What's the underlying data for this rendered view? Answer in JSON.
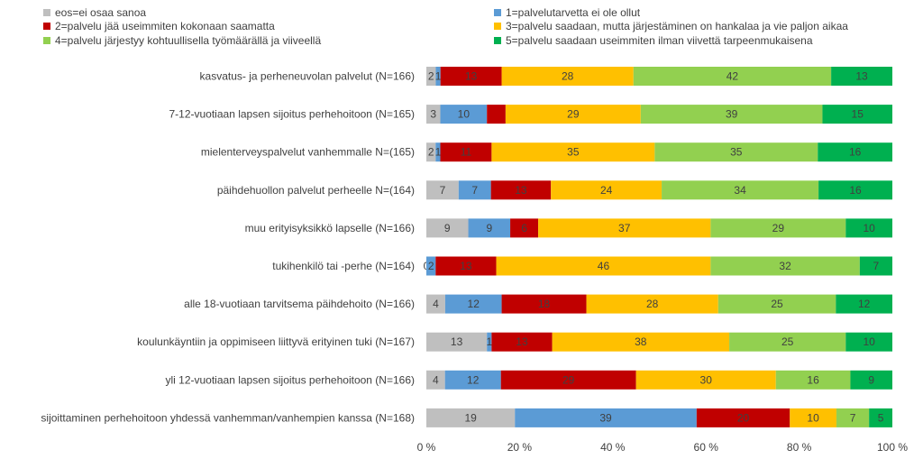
{
  "chart_data": {
    "type": "bar",
    "orientation": "horizontal",
    "stacked": "percent",
    "xlim": [
      0,
      100
    ],
    "grid": false,
    "legend_position": "top",
    "x_ticks": [
      "0 %",
      "20 %",
      "40 %",
      "60 %",
      "80 %",
      "100 %"
    ],
    "categories": [
      "kasvatus- ja perheneuvolan palvelut (N=166)",
      "7-12-vuotiaan lapsen sijoitus perhehoitoon (N=165)",
      "mielenterveyspalvelut vanhemmalle N=(165)",
      "päihdehuollon palvelut perheelle N=(164)",
      "muu erityisyksikkö lapselle (N=166)",
      "tukihenkilö tai -perhe (N=164)",
      "alle 18-vuotiaan tarvitsema päihdehoito (N=166)",
      "koulunkäyntiin ja oppimiseen liittyvä erityinen tuki (N=167)",
      "yli 12-vuotiaan lapsen sijoitus perhehoitoon (N=166)",
      "sijoittaminen perhehoitoon yhdessä vanhemman/vanhempien kanssa (N=168)"
    ],
    "series": [
      {
        "name": "eos=ei osaa sanoa",
        "color": "#bfbfbf",
        "values": [
          2,
          3,
          2,
          7,
          9,
          0,
          4,
          13,
          4,
          19
        ],
        "labels": [
          "2",
          "3",
          "2",
          "7",
          "9",
          "0",
          "4",
          "13",
          "4",
          "19"
        ]
      },
      {
        "name": "1=palvelutarvetta ei ole ollut",
        "color": "#5b9bd5",
        "values": [
          1,
          10,
          1,
          7,
          9,
          2,
          12,
          1,
          12,
          39
        ],
        "labels": [
          "1",
          "10",
          "1",
          "7",
          "9",
          "2",
          "12",
          "1",
          "12",
          "39"
        ]
      },
      {
        "name": "2=palvelu jää useimmiten kokonaan saamatta",
        "color": "#c00000",
        "values": [
          13,
          4,
          11,
          13,
          6,
          13,
          18,
          13,
          29,
          20
        ],
        "labels": [
          "13",
          "",
          "11",
          "13",
          "6",
          "13",
          "18",
          "13",
          "29",
          "20"
        ]
      },
      {
        "name": "3=palvelu saadaan, mutta järjestäminen on hankalaa ja vie paljon aikaa",
        "color": "#ffc000",
        "values": [
          28,
          29,
          35,
          24,
          37,
          46,
          28,
          38,
          30,
          10
        ],
        "labels": [
          "28",
          "29",
          "35",
          "24",
          "37",
          "46",
          "28",
          "38",
          "30",
          "10"
        ]
      },
      {
        "name": "4=palvelu järjestyy kohtuullisella työmäärällä ja viiveellä",
        "color": "#92d050",
        "values": [
          42,
          39,
          35,
          34,
          29,
          32,
          25,
          25,
          16,
          7
        ],
        "labels": [
          "42",
          "39",
          "35",
          "34",
          "29",
          "32",
          "25",
          "25",
          "16",
          "7"
        ]
      },
      {
        "name": "5=palvelu saadaan useimmiten ilman viivettä tarpeenmukaisena",
        "color": "#00b050",
        "values": [
          13,
          15,
          16,
          16,
          10,
          7,
          12,
          10,
          9,
          5
        ],
        "labels": [
          "13",
          "15",
          "16",
          "16",
          "10",
          "7",
          "12",
          "10",
          "9",
          "5"
        ]
      }
    ]
  }
}
